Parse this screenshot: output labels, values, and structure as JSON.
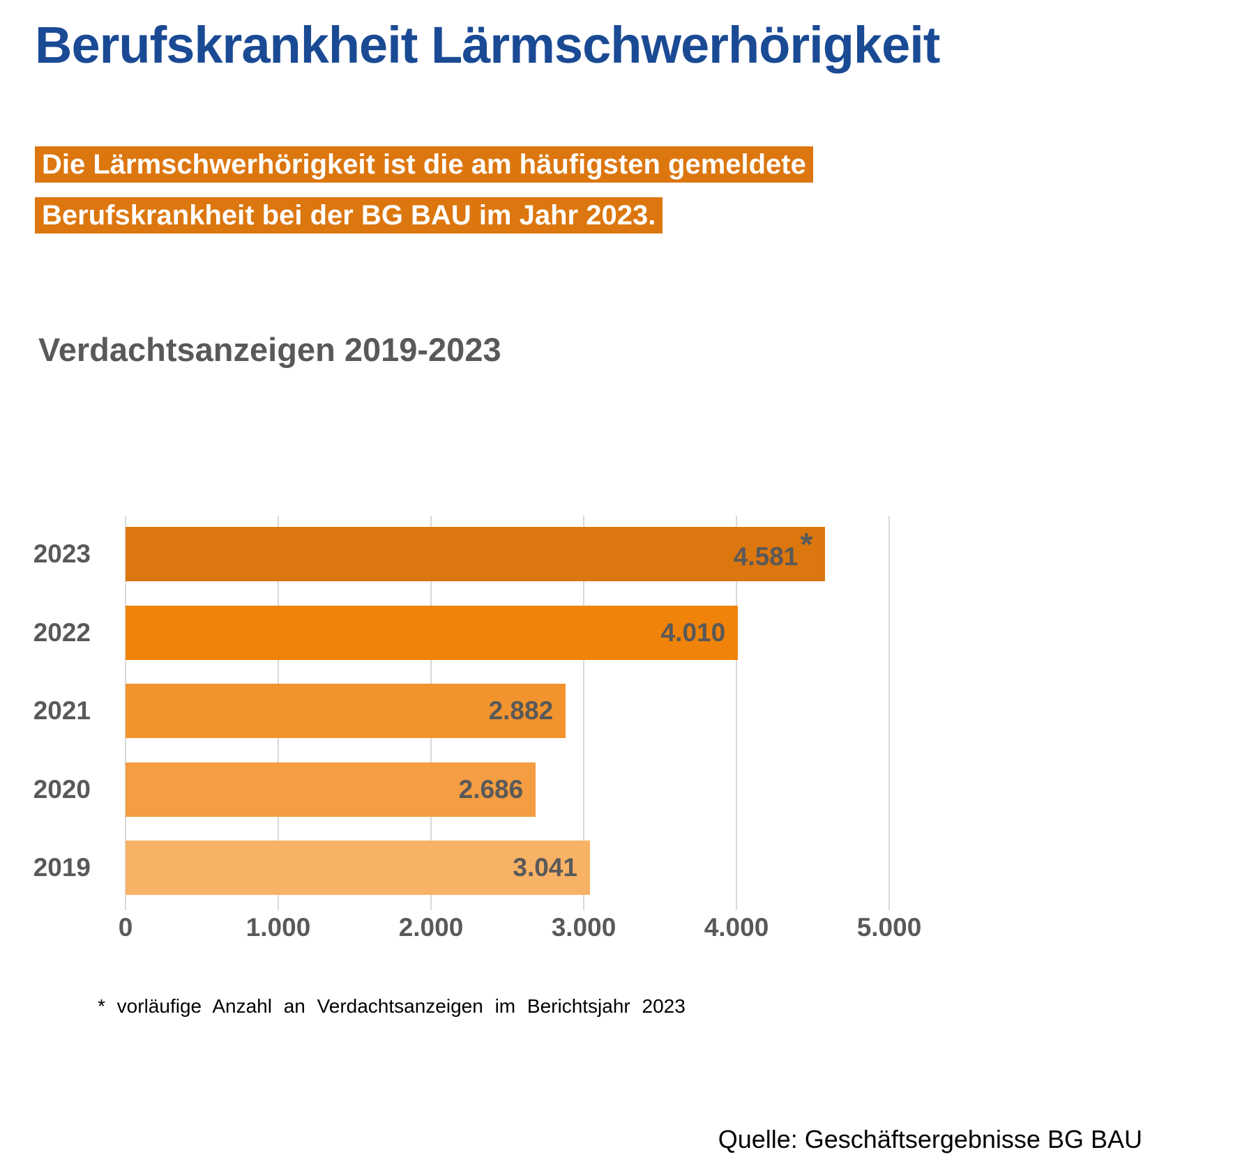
{
  "page": {
    "title": "Berufskrankheit Lärmschwerhörigkeit",
    "highlight": {
      "line1": "Die Lärmschwerhörigkeit ist die am häufigsten gemeldete",
      "line2": "Berufskrankheit bei der BG BAU im Jahr 2023."
    },
    "footnote": "* vorläufige Anzahl an Verdachtsanzeigen im Berichtsjahr 2023",
    "source": "Quelle: Geschäftsergebnisse BG BAU"
  },
  "chart_data": {
    "type": "bar",
    "orientation": "horizontal",
    "title": "Verdachtsanzeigen 2019-2023",
    "categories": [
      "2023",
      "2022",
      "2021",
      "2020",
      "2019"
    ],
    "values": [
      4581,
      4010,
      2882,
      2686,
      3041
    ],
    "value_labels": [
      "4.581",
      "4.010",
      "2.882",
      "2.686",
      "3.041"
    ],
    "value_label_suffixes": [
      "*",
      "",
      "",
      "",
      ""
    ],
    "bar_colors": [
      "#DC760E",
      "#F0830A",
      "#F3932E",
      "#F49D42",
      "#F7B266"
    ],
    "xlim": [
      0,
      5000
    ],
    "x_tick_values": [
      0,
      1000,
      2000,
      3000,
      4000,
      5000
    ],
    "x_tick_labels": [
      "0",
      "1.000",
      "2.000",
      "3.000",
      "4.000",
      "5.000"
    ],
    "grid": true,
    "legend": false,
    "annotation": "* vorläufige Anzahl an Verdachtsanzeigen im Berichtsjahr 2023"
  },
  "colors": {
    "title_blue": "#1A4A94",
    "highlight_orange": "#DC760E",
    "label_gray": "#595959",
    "gridline_gray": "#D9D9D9",
    "footnote_black": "#000000"
  }
}
